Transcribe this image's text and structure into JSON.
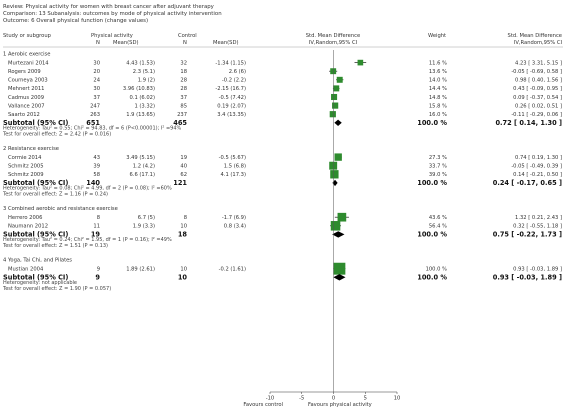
{
  "header": {
    "review": "Review:  Physical activity for women with breast cancer after adjuvant therapy",
    "comparison": "Comparison:  13 Subanalysis: outcomes by mode of physical activity intervention",
    "outcome": "Outcome:  6 Overall physical function (change values)"
  },
  "columns": {
    "study": "Study or subgroup",
    "physical_activity": "Physical activity",
    "control": "Control",
    "n": "N",
    "mean_sd": "Mean(SD)",
    "smd_title": "Std. Mean Difference",
    "smd_method": "IV,Random,95% CI",
    "weight": "Weight"
  },
  "axis_footer": {
    "favours_left": "Favours control",
    "favours_right": "Favours physical activity"
  },
  "chart_data": {
    "type": "forest",
    "xlim": [
      -10,
      10
    ],
    "ticks": [
      -10,
      -5,
      0,
      5,
      10
    ],
    "groups": [
      {
        "title": "1 Aerobic exercise",
        "studies": [
          {
            "name": "Murtezani 2014",
            "pa_n": "30",
            "pa_mean_sd": "4.43 (1.53)",
            "c_n": "32",
            "c_mean_sd": "-1.34 (1.15)",
            "weight": "11.6 %",
            "ci_text": "4.23 [ 3.31, 5.15 ]",
            "est": 4.23,
            "lo": 3.31,
            "hi": 5.15,
            "w": 11.6
          },
          {
            "name": "Rogers 2009",
            "pa_n": "20",
            "pa_mean_sd": "2.3 (5.1)",
            "c_n": "18",
            "c_mean_sd": "2.6 (6)",
            "weight": "13.6 %",
            "ci_text": "-0.05 [ -0.69, 0.58 ]",
            "est": -0.05,
            "lo": -0.69,
            "hi": 0.58,
            "w": 13.6
          },
          {
            "name": "Courneya 2003",
            "pa_n": "24",
            "pa_mean_sd": "1.9 (2)",
            "c_n": "28",
            "c_mean_sd": "-0.2 (2.2)",
            "weight": "14.0 %",
            "ci_text": "0.98 [ 0.40, 1.56 ]",
            "est": 0.98,
            "lo": 0.4,
            "hi": 1.56,
            "w": 14.0
          },
          {
            "name": "Mehnert 2011",
            "pa_n": "30",
            "pa_mean_sd": "3.96 (10.83)",
            "c_n": "28",
            "c_mean_sd": "-2.15 (16.7)",
            "weight": "14.4 %",
            "ci_text": "0.43 [ -0.09, 0.95 ]",
            "est": 0.43,
            "lo": -0.09,
            "hi": 0.95,
            "w": 14.4
          },
          {
            "name": "Cadmus 2009",
            "pa_n": "37",
            "pa_mean_sd": "0.1 (6.02)",
            "c_n": "37",
            "c_mean_sd": "-0.5 (7.42)",
            "weight": "14.8 %",
            "ci_text": "0.09 [ -0.37, 0.54 ]",
            "est": 0.09,
            "lo": -0.37,
            "hi": 0.54,
            "w": 14.8
          },
          {
            "name": "Vallance 2007",
            "pa_n": "247",
            "pa_mean_sd": "1 (3.32)",
            "c_n": "85",
            "c_mean_sd": "0.19 (2.07)",
            "weight": "15.8 %",
            "ci_text": "0.26 [ 0.02, 0.51 ]",
            "est": 0.26,
            "lo": 0.02,
            "hi": 0.51,
            "w": 15.8
          },
          {
            "name": "Saarto 2012",
            "pa_n": "263",
            "pa_mean_sd": "1.9 (13.65)",
            "c_n": "237",
            "c_mean_sd": "3.4 (13.35)",
            "weight": "16.0 %",
            "ci_text": "-0.11 [ -0.29, 0.06 ]",
            "est": -0.11,
            "lo": -0.29,
            "hi": 0.06,
            "w": 16.0
          }
        ],
        "subtotal": {
          "label": "Subtotal (95% CI)",
          "pa_n": "651",
          "c_n": "465",
          "weight": "100.0 %",
          "ci_text": "0.72 [ 0.14, 1.30 ]",
          "est": 0.72,
          "lo": 0.14,
          "hi": 1.3
        },
        "heterogeneity": "Heterogeneity: Tau² = 0.55; Chi² = 94.83, df = 6 (P<0.00001); I² =94%",
        "overall": "Test for overall effect: Z = 2.42 (P = 0.016)"
      },
      {
        "title": "2 Resistance exercise",
        "studies": [
          {
            "name": "Cormie 2014",
            "pa_n": "43",
            "pa_mean_sd": "3.49 (5.15)",
            "c_n": "19",
            "c_mean_sd": "-0.5 (5.67)",
            "weight": "27.3 %",
            "ci_text": "0.74 [ 0.19, 1.30 ]",
            "est": 0.74,
            "lo": 0.19,
            "hi": 1.3,
            "w": 27.3
          },
          {
            "name": "Schmitz 2005",
            "pa_n": "39",
            "pa_mean_sd": "1.2 (4.2)",
            "c_n": "40",
            "c_mean_sd": "1.5 (6.8)",
            "weight": "33.7 %",
            "ci_text": "-0.05 [ -0.49, 0.39 ]",
            "est": -0.05,
            "lo": -0.49,
            "hi": 0.39,
            "w": 33.7
          },
          {
            "name": "Schmitz 2009",
            "pa_n": "58",
            "pa_mean_sd": "6.6 (17.1)",
            "c_n": "62",
            "c_mean_sd": "4.1 (17.3)",
            "weight": "39.0 %",
            "ci_text": "0.14 [ -0.21, 0.50 ]",
            "est": 0.14,
            "lo": -0.21,
            "hi": 0.5,
            "w": 39.0
          }
        ],
        "subtotal": {
          "label": "Subtotal (95% CI)",
          "pa_n": "140",
          "c_n": "121",
          "weight": "100.0 %",
          "ci_text": "0.24 [ -0.17, 0.65 ]",
          "est": 0.24,
          "lo": -0.17,
          "hi": 0.65
        },
        "heterogeneity": "Heterogeneity: Tau² = 0.08; Chi² = 4.99, df = 2 (P = 0.08); I² =60%",
        "overall": "Test for overall effect: Z = 1.16 (P = 0.24)"
      },
      {
        "title": "3 Combined aerobic and resistance exercise",
        "studies": [
          {
            "name": "Herrero 2006",
            "pa_n": "8",
            "pa_mean_sd": "6.7 (5)",
            "c_n": "8",
            "c_mean_sd": "-1.7 (6.9)",
            "weight": "43.6 %",
            "ci_text": "1.32 [ 0.21, 2.43 ]",
            "est": 1.32,
            "lo": 0.21,
            "hi": 2.43,
            "w": 43.6
          },
          {
            "name": "Naumann 2012",
            "pa_n": "11",
            "pa_mean_sd": "1.9 (3.3)",
            "c_n": "10",
            "c_mean_sd": "0.8 (3.4)",
            "weight": "56.4 %",
            "ci_text": "0.32 [ -0.55, 1.18 ]",
            "est": 0.32,
            "lo": -0.55,
            "hi": 1.18,
            "w": 56.4
          }
        ],
        "subtotal": {
          "label": "Subtotal (95% CI)",
          "pa_n": "19",
          "c_n": "18",
          "weight": "100.0 %",
          "ci_text": "0.75 [ -0.22, 1.73 ]",
          "est": 0.75,
          "lo": -0.22,
          "hi": 1.73
        },
        "heterogeneity": "Heterogeneity: Tau² = 0.24; Chi² = 1.95, df = 1 (P = 0.16); I² =49%",
        "overall": "Test for overall effect: Z = 1.51 (P = 0.13)"
      },
      {
        "title": "4 Yoga, Tai Chi, and Pilates",
        "studies": [
          {
            "name": "Mustian 2004",
            "pa_n": "9",
            "pa_mean_sd": "1.89 (2.61)",
            "c_n": "10",
            "c_mean_sd": "-0.2 (1.61)",
            "weight": "100.0 %",
            "ci_text": "0.93 [ -0.03, 1.89 ]",
            "est": 0.93,
            "lo": -0.03,
            "hi": 1.89,
            "w": 100.0
          }
        ],
        "subtotal": {
          "label": "Subtotal (95% CI)",
          "pa_n": "9",
          "c_n": "10",
          "weight": "100.0 %",
          "ci_text": "0.93 [ -0.03, 1.89 ]",
          "est": 0.93,
          "lo": -0.03,
          "hi": 1.89
        },
        "heterogeneity": "Heterogeneity: not applicable",
        "overall": "Test for overall effect: Z = 1.90 (P = 0.057)"
      }
    ],
    "colors": {
      "square": "#2e8b2e",
      "line": "#1a1a1a",
      "diamond": "#000000",
      "text": "#333333"
    }
  }
}
